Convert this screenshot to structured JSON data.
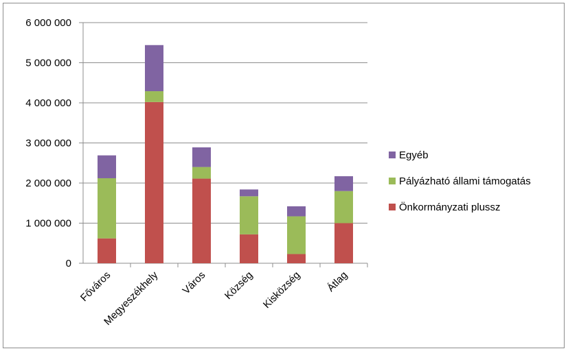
{
  "chart_data": {
    "type": "bar",
    "stacked": true,
    "categories": [
      "Főváros",
      "Megyeszékhely",
      "Város",
      "Község",
      "Kisközség",
      "Átlag"
    ],
    "series": [
      {
        "name": "Önkormányzati plussz",
        "color": "#c0504d",
        "values": [
          620000,
          4020000,
          2110000,
          720000,
          230000,
          1000000
        ]
      },
      {
        "name": "Pályázható állami támogatás",
        "color": "#9bbb59",
        "values": [
          1500000,
          270000,
          290000,
          950000,
          940000,
          800000
        ]
      },
      {
        "name": "Egyéb",
        "color": "#8064a2",
        "values": [
          570000,
          1150000,
          490000,
          170000,
          250000,
          370000
        ]
      }
    ],
    "yticks": [
      "0",
      "1 000 000",
      "2 000 000",
      "3 000 000",
      "4 000 000",
      "5 000 000",
      "6 000 000"
    ],
    "ylim": [
      0,
      6000000
    ],
    "grid": true,
    "legend_position": "right",
    "legend_order": [
      "Egyéb",
      "Pályázható állami támogatás",
      "Önkormányzati plussz"
    ],
    "title": "",
    "xlabel": "",
    "ylabel": ""
  }
}
